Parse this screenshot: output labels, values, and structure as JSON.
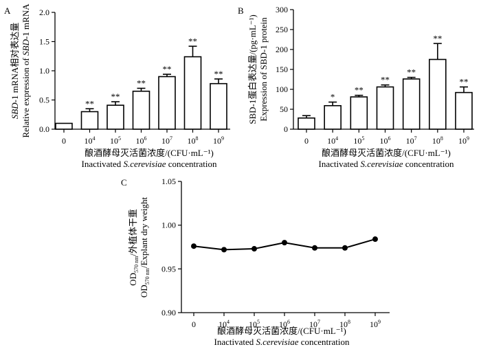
{
  "chart_data": [
    {
      "panel_label": "A",
      "type": "bar",
      "categories": [
        "0",
        "10^4",
        "10^5",
        "10^6",
        "10^7",
        "10^8",
        "10^9"
      ],
      "values": [
        0.1,
        0.3,
        0.41,
        0.65,
        0.9,
        1.24,
        0.78
      ],
      "errors": [
        0,
        0.05,
        0.06,
        0.05,
        0.04,
        0.18,
        0.08
      ],
      "significance": [
        "",
        "**",
        "**",
        "**",
        "**",
        "**",
        "**"
      ],
      "yticks": [
        "0.0",
        "0.5",
        "1.0",
        "1.5",
        "2.0"
      ],
      "ylim": [
        0,
        2.0
      ],
      "ylabel_cn": "SBD-1 mRNA相对表达量",
      "ylabel_en": "Relative expression of SBD-1 mRNA",
      "xlabel_cn": "酿酒酵母灭活菌浓度/(CFU·mL⁻¹)",
      "xlabel_en": "Inactivated S.cerevisiae concentration"
    },
    {
      "panel_label": "B",
      "type": "bar",
      "categories": [
        "0",
        "10^4",
        "10^5",
        "10^6",
        "10^7",
        "10^8",
        "10^9"
      ],
      "values": [
        28,
        59,
        81,
        106,
        126,
        175,
        92
      ],
      "errors": [
        6,
        9,
        4,
        5,
        4,
        40,
        14
      ],
      "significance": [
        "",
        "*",
        "**",
        "**",
        "**",
        "**",
        "**"
      ],
      "yticks": [
        "0",
        "50",
        "100",
        "150",
        "200",
        "250",
        "300"
      ],
      "ylim": [
        0,
        300
      ],
      "ylabel_cn": "SBD-1蛋白表达量/(pg·mL⁻¹)",
      "ylabel_en": "Expression of SBD-1 protein",
      "xlabel_cn": "酿酒酵母灭活菌浓度/(CFU·mL⁻¹)",
      "xlabel_en": "Inactivated S.cerevisiae concentration"
    },
    {
      "panel_label": "C",
      "type": "line",
      "categories": [
        "0",
        "10^4",
        "10^5",
        "10^6",
        "10^7",
        "10^8",
        "10^9"
      ],
      "values": [
        0.976,
        0.972,
        0.973,
        0.98,
        0.974,
        0.974,
        0.984
      ],
      "yticks": [
        "0.90",
        "0.95",
        "1.00",
        "1.05"
      ],
      "ylim": [
        0.9,
        1.05
      ],
      "ylabel_cn": "OD570 nm/外植体干重",
      "ylabel_en": "OD570 nm/Explant dry weight",
      "xlabel_cn": "酿酒酵母灭活菌浓度/(CFU·mL⁻¹)",
      "xlabel_en": "Inactivated S.cerevisiae concentration"
    }
  ]
}
